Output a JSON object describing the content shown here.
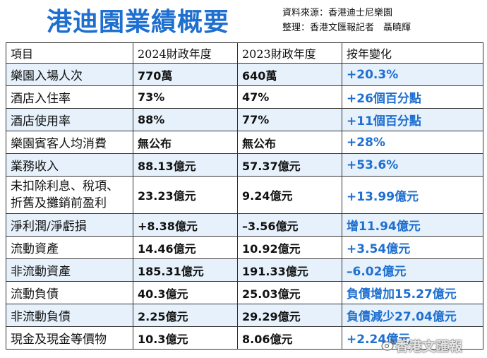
{
  "title": "港迪園業績概要",
  "source_line1": "資料來源：香港迪士尼樂園",
  "source_line2": "整理：香港文匯報記者　聶曉輝",
  "headers": [
    "項目",
    "2024財政年度",
    "2023財政年度",
    "按年變化"
  ],
  "rows": [
    {
      "item": "樂園入場人次",
      "fy2024": "770萬",
      "fy2023": "640萬",
      "change": "+20.3%"
    },
    {
      "item": "酒店入住率",
      "fy2024": "73%",
      "fy2023": "47%",
      "change": "+26個百分點"
    },
    {
      "item": "酒店使用率",
      "fy2024": "88%",
      "fy2023": "77%",
      "change": "+11個百分點"
    },
    {
      "item": "樂園賓客人均消費",
      "fy2024": "無公布",
      "fy2023": "無公布",
      "change": "+28%"
    },
    {
      "item": "業務收入",
      "fy2024": "88.13億元",
      "fy2023": "57.37億元",
      "change": "+53.6%"
    },
    {
      "item_line1": "未扣除利息、稅項、",
      "item_line2": "折舊及攤銷前盈利",
      "fy2024": "23.23億元",
      "fy2023": "9.24億元",
      "change": "+13.99億元"
    },
    {
      "item": "淨利潤/淨虧損",
      "fy2024": "+8.38億元",
      "fy2023": "–3.56億元",
      "change": "增11.94億元"
    },
    {
      "item": "流動資產",
      "fy2024": "14.46億元",
      "fy2023": "10.92億元",
      "change": "+3.54億元"
    },
    {
      "item": "非流動資產",
      "fy2024": "185.31億元",
      "fy2023": "191.33億元",
      "change": "–6.02億元"
    },
    {
      "item": "流動負債",
      "fy2024": "40.3億元",
      "fy2023": "25.03億元",
      "change": "負債增加15.27億元"
    },
    {
      "item": "非流動負債",
      "fy2024": "2.25億元",
      "fy2023": "29.29億元",
      "change": "負債減少27.04億元"
    },
    {
      "item": "現金及現金等價物",
      "fy2024": "10.3億元",
      "fy2023": "8.06億元",
      "change": "+2.24億元"
    }
  ],
  "watermark": "香港文匯報",
  "colors": {
    "accent": "#1e6fd0",
    "row_alt": "#e6f1fb"
  }
}
